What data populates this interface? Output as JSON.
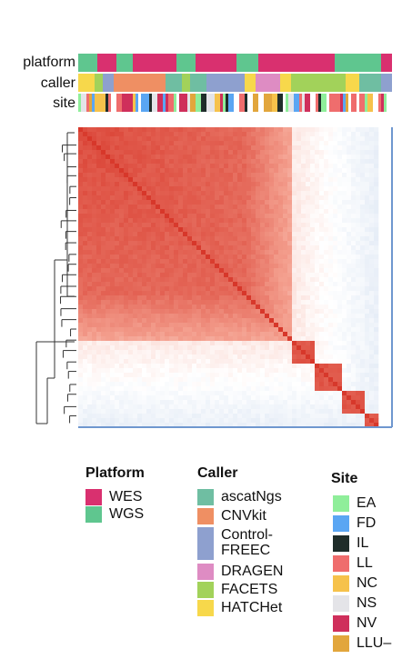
{
  "colors": {
    "high": "#d7372a",
    "mid": "#f4a08f",
    "zero": "#ffffff",
    "low": "#6f97cf"
  },
  "tracks": [
    {
      "key": "platform",
      "label": "platform"
    },
    {
      "key": "caller",
      "label": "caller"
    },
    {
      "key": "site",
      "label": "site"
    }
  ],
  "legend": {
    "platform": {
      "title": "Platform",
      "items": [
        {
          "label": "WES",
          "color": "#d9306f"
        },
        {
          "label": "WGS",
          "color": "#5fc68f"
        }
      ]
    },
    "caller": {
      "title": "Caller",
      "items": [
        {
          "label": "ascatNgs",
          "color": "#6fbea2"
        },
        {
          "label": "CNVkit",
          "color": "#ef8f63"
        },
        {
          "label": "Control-\nFREEC",
          "color": "#8ea0cf"
        },
        {
          "label": "DRAGEN",
          "color": "#de8cc3"
        },
        {
          "label": "FACETS",
          "color": "#a2d25a"
        },
        {
          "label": "HATCHet",
          "color": "#f7d84b"
        }
      ]
    },
    "site": {
      "title": "Site",
      "items": [
        {
          "label": "EA",
          "color": "#8fee9a"
        },
        {
          "label": "FD",
          "color": "#5aa6f3"
        },
        {
          "label": "IL",
          "color": "#1f2d2a"
        },
        {
          "label": "LL",
          "color": "#ef6d6d"
        },
        {
          "label": "NC",
          "color": "#f6c24b"
        },
        {
          "label": "NS",
          "color": "#e4e4e8"
        },
        {
          "label": "NV",
          "color": "#cf2f5b"
        },
        {
          "label": "LLU–",
          "color": "#e2a63c"
        }
      ]
    }
  },
  "chart_data": {
    "type": "heatmap",
    "title": "",
    "xlabel": "",
    "ylabel": "",
    "color_scale": "diverging red-white-blue (high similarity = red, low = blue)",
    "row_order": "hierarchically clustered (dendrogram on left)",
    "blocks": [
      {
        "range": [
          0.0,
          0.55
        ],
        "level": "high"
      },
      {
        "range": [
          0.55,
          0.7
        ],
        "level": "medium-high"
      },
      {
        "range": [
          0.7,
          0.78
        ],
        "level": "cluster"
      },
      {
        "range": [
          0.78,
          0.87
        ],
        "level": "cluster"
      },
      {
        "range": [
          0.87,
          0.94
        ],
        "level": "cluster"
      },
      {
        "range": [
          0.94,
          1.0
        ],
        "level": "cluster"
      }
    ],
    "annotation_tracks": [
      "platform",
      "caller",
      "site"
    ]
  }
}
